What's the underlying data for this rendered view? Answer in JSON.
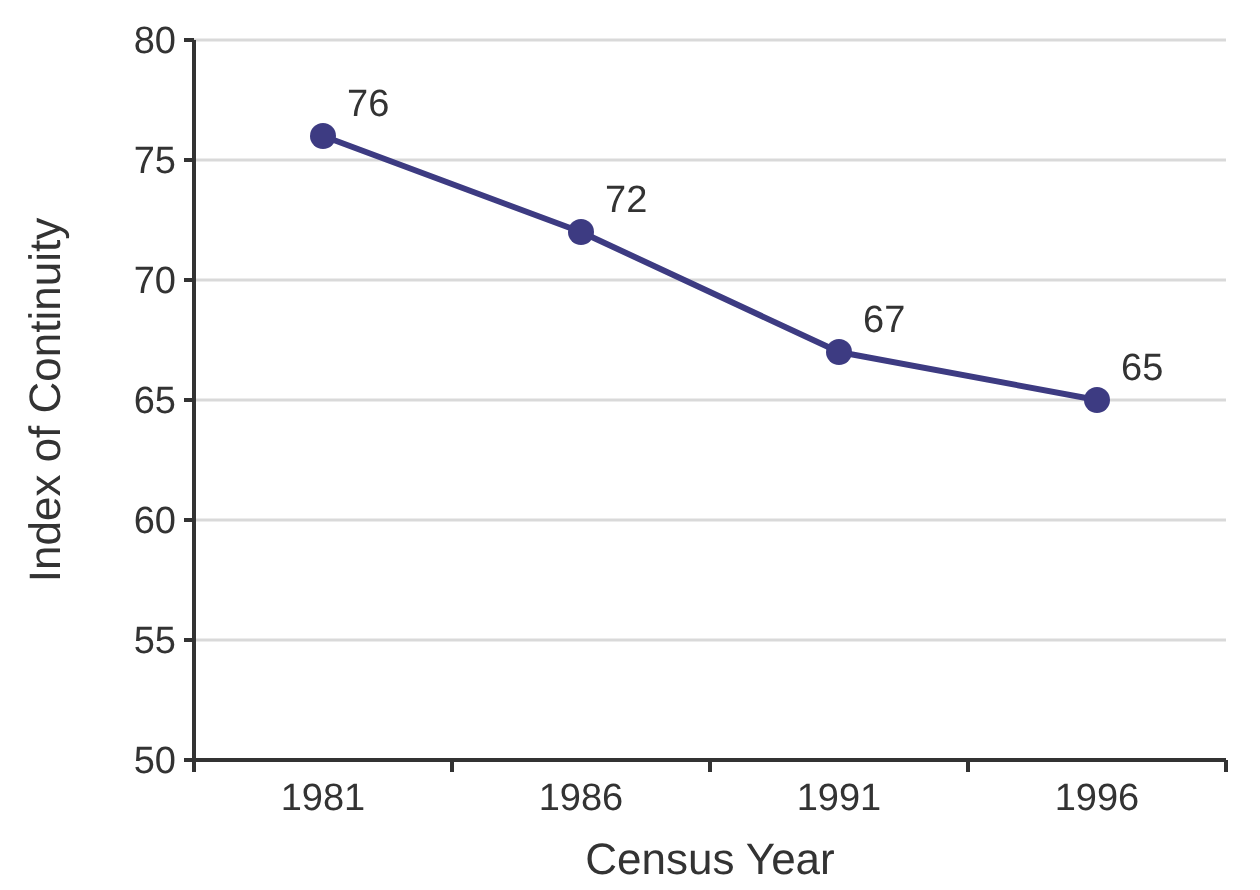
{
  "chart_data": {
    "type": "line",
    "xlabel": "Census Year",
    "ylabel": "Index of Continuity",
    "categories": [
      "1981",
      "1986",
      "1991",
      "1996"
    ],
    "series": [
      {
        "color": "#3d3b82",
        "values": [
          76,
          72,
          67,
          65
        ]
      }
    ],
    "ylim": [
      50,
      80
    ],
    "yticks": [
      50,
      55,
      60,
      65,
      70,
      75,
      80
    ],
    "grid": "y",
    "marker": "circle",
    "line_style": "solid",
    "data_labels": true
  }
}
